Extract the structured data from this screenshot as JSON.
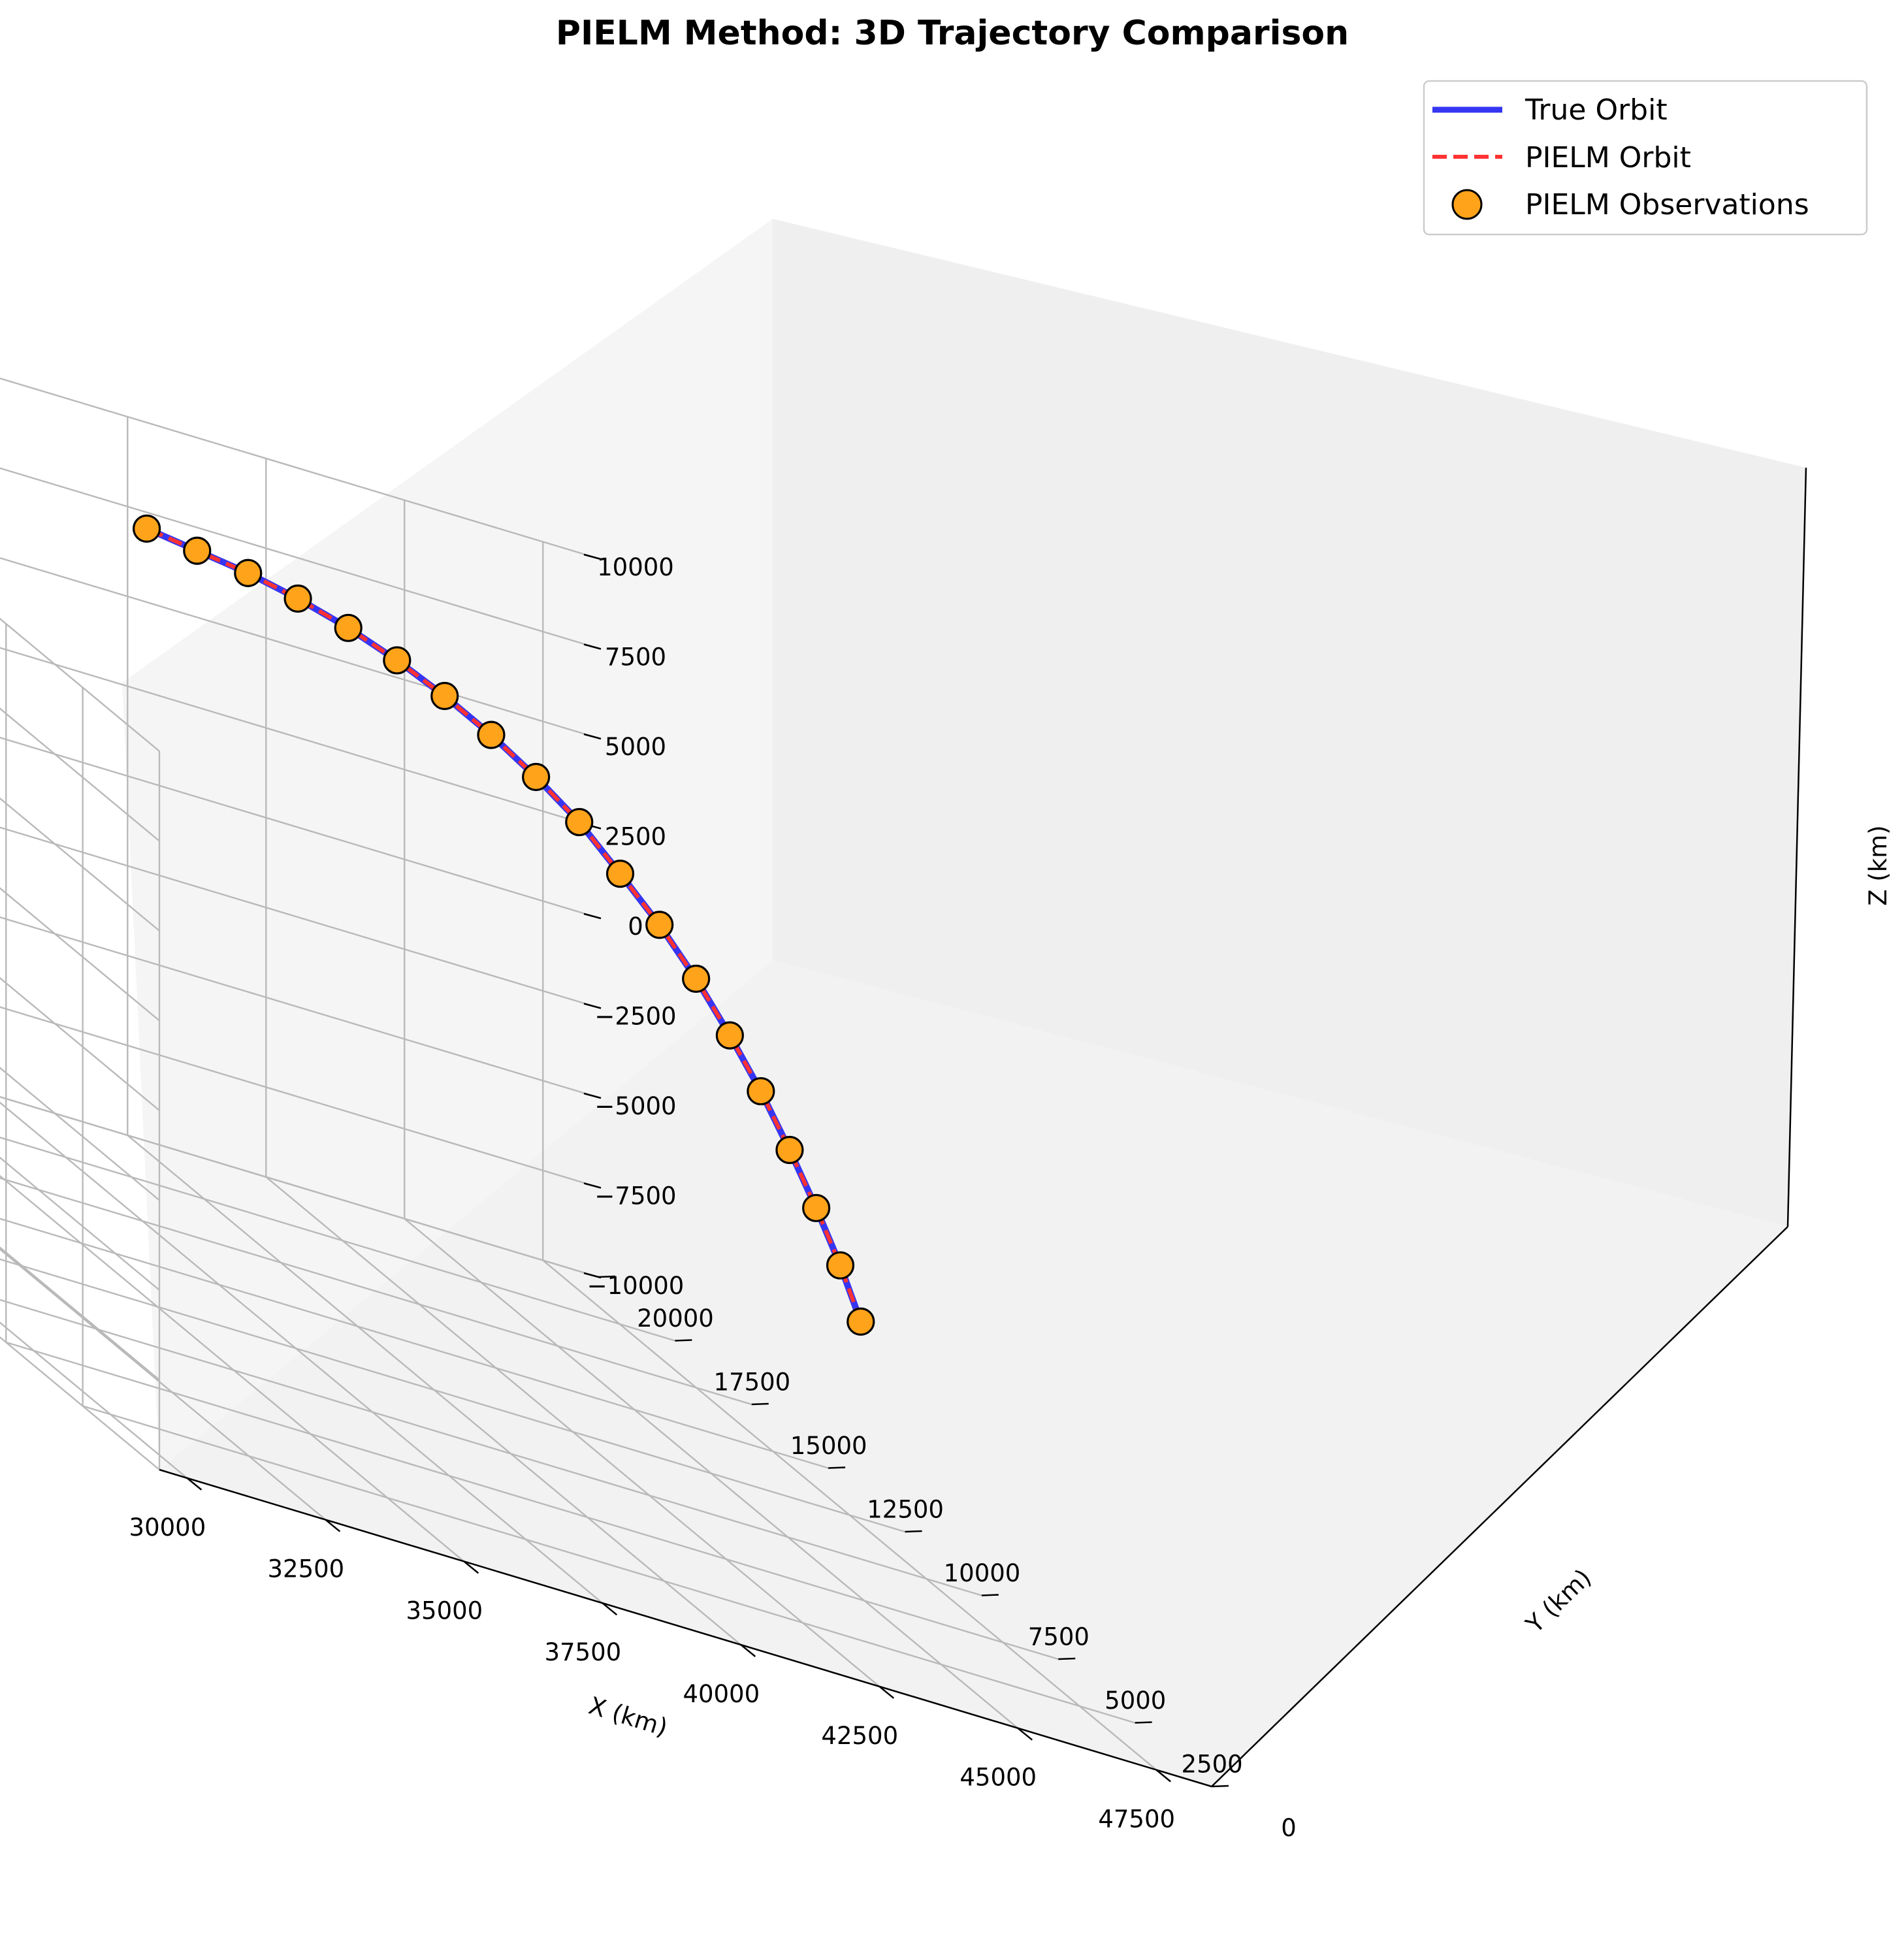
{
  "chart_data": {
    "type": "line3d",
    "title": "PIELM Method: 3D Trajectory Comparison",
    "xlabel": "X (km)",
    "ylabel": "Y (km)",
    "zlabel": "Z (km)",
    "xlim": [
      29500,
      48500
    ],
    "ylim": [
      0,
      20000
    ],
    "zlim": [
      -10000,
      10000
    ],
    "x_ticks": [
      30000,
      32500,
      35000,
      37500,
      40000,
      42500,
      45000,
      47500
    ],
    "y_ticks": [
      0,
      2500,
      5000,
      7500,
      10000,
      12500,
      15000,
      17500,
      20000
    ],
    "z_ticks": [
      -10000,
      -7500,
      -5000,
      -2500,
      0,
      2500,
      5000,
      7500,
      10000
    ],
    "x_tick_labels": [
      "30000",
      "32500",
      "35000",
      "37500",
      "40000",
      "42500",
      "45000",
      "47500"
    ],
    "y_tick_labels": [
      "0",
      "2500",
      "5000",
      "7500",
      "10000",
      "12500",
      "15000",
      "17500",
      "20000"
    ],
    "z_tick_labels": [
      "−10000",
      "−7500",
      "−5000",
      "−2500",
      "0",
      "2500",
      "5000",
      "7500",
      "10000"
    ],
    "grid": true,
    "legend_position": "top-right",
    "series": [
      {
        "name": "True Orbit",
        "style": "solid line",
        "color": "#3535f2"
      },
      {
        "name": "PIELM Orbit",
        "style": "dashed line",
        "color": "#ff3232"
      },
      {
        "name": "PIELM Observations",
        "style": "markers",
        "color": "#ffa31a",
        "edge_color": "#000000"
      }
    ],
    "observations": {
      "x": [
        42164,
        42155,
        42080,
        41960,
        41800,
        41600,
        41350,
        41050,
        40700,
        40320,
        39900,
        39450,
        38970,
        38470,
        37950,
        37400,
        36860,
        36300,
        35750
      ],
      "y": [
        0,
        650,
        1300,
        1950,
        2600,
        3250,
        3900,
        4550,
        5200,
        5850,
        6500,
        7150,
        7800,
        8450,
        9100,
        9750,
        10400,
        11050,
        11700
      ],
      "z": [
        0,
        1100,
        2200,
        3300,
        4400,
        5400,
        6400,
        7300,
        8100,
        8900,
        9500,
        10000,
        10400,
        10700,
        10900,
        11000,
        11000,
        10900,
        10800
      ]
    }
  }
}
